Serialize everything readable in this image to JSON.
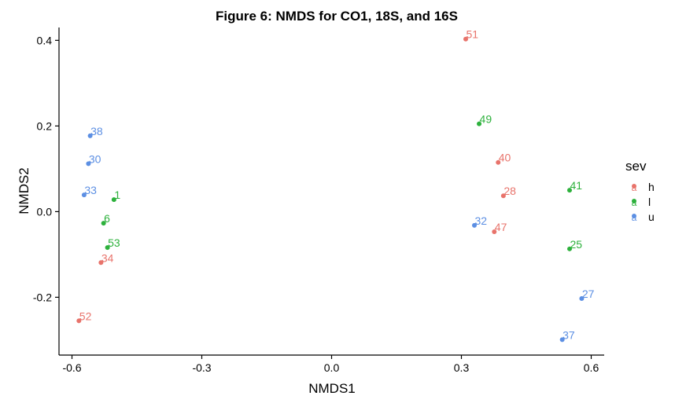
{
  "chart_data": {
    "type": "scatter",
    "title": "Figure 6: NMDS for CO1, 18S, and 16S",
    "xlabel": "NMDS1",
    "ylabel": "NMDS2",
    "xlim": [
      -0.63,
      0.63
    ],
    "ylim": [
      -0.335,
      0.43
    ],
    "xticks": [
      -0.6,
      -0.3,
      0.0,
      0.3,
      0.6
    ],
    "xtick_labels": [
      "-0.6",
      "-0.3",
      "0.0",
      "0.3",
      "0.6"
    ],
    "yticks": [
      -0.2,
      0.0,
      0.2,
      0.4
    ],
    "ytick_labels": [
      "-0.2",
      "0.0",
      "0.2",
      "0.4"
    ],
    "grid": false,
    "legend": {
      "title": "sev",
      "placement": "right",
      "key_glyph": "a",
      "entries": [
        "h",
        "l",
        "u"
      ]
    },
    "colors": {
      "h": "#E8736B",
      "l": "#2DB13C",
      "u": "#5C8FE3"
    },
    "series": [
      {
        "name": "h",
        "points": [
          {
            "label": "51",
            "x": 0.31,
            "y": 0.403
          },
          {
            "label": "40",
            "x": 0.385,
            "y": 0.115
          },
          {
            "label": "28",
            "x": 0.397,
            "y": 0.037
          },
          {
            "label": "47",
            "x": 0.376,
            "y": -0.047
          },
          {
            "label": "34",
            "x": -0.533,
            "y": -0.119
          },
          {
            "label": "52",
            "x": -0.584,
            "y": -0.255
          }
        ]
      },
      {
        "name": "l",
        "points": [
          {
            "label": "49",
            "x": 0.341,
            "y": 0.205
          },
          {
            "label": "41",
            "x": 0.55,
            "y": 0.05
          },
          {
            "label": "25",
            "x": 0.55,
            "y": -0.087
          },
          {
            "label": "1",
            "x": -0.503,
            "y": 0.028
          },
          {
            "label": "6",
            "x": -0.527,
            "y": -0.027
          },
          {
            "label": "53",
            "x": -0.518,
            "y": -0.084
          }
        ]
      },
      {
        "name": "u",
        "points": [
          {
            "label": "38",
            "x": -0.558,
            "y": 0.177
          },
          {
            "label": "30",
            "x": -0.562,
            "y": 0.112
          },
          {
            "label": "33",
            "x": -0.572,
            "y": 0.039
          },
          {
            "label": "32",
            "x": 0.33,
            "y": -0.032
          },
          {
            "label": "27",
            "x": 0.578,
            "y": -0.203
          },
          {
            "label": "37",
            "x": 0.533,
            "y": -0.299
          }
        ]
      }
    ]
  }
}
